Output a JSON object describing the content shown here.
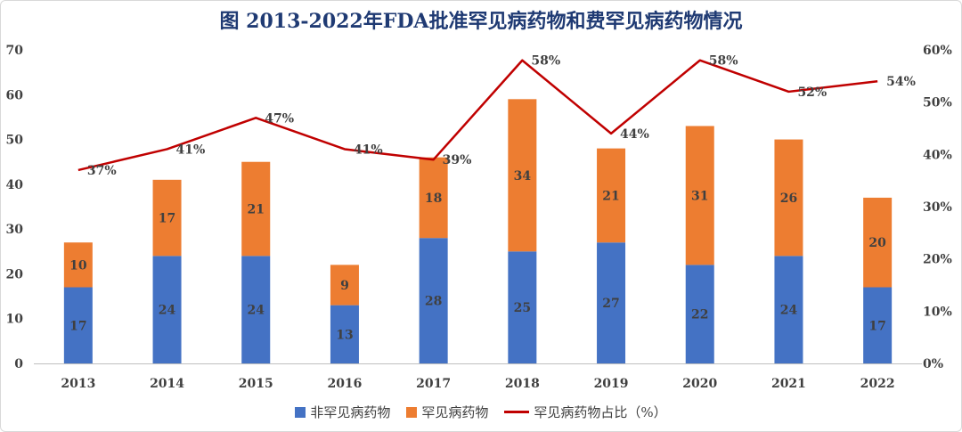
{
  "chart_data": {
    "type": "bar",
    "stacked": true,
    "title": "图  2013-2022年FDA批准罕见病药物和费罕见病药物情况",
    "categories": [
      "2013",
      "2014",
      "2015",
      "2016",
      "2017",
      "2018",
      "2019",
      "2020",
      "2021",
      "2022"
    ],
    "series": [
      {
        "name": "非罕见病药物",
        "type": "bar",
        "color": "#4472c4",
        "values": [
          17,
          24,
          24,
          13,
          28,
          25,
          27,
          22,
          24,
          17
        ]
      },
      {
        "name": "罕见病药物",
        "type": "bar",
        "color": "#ed7d31",
        "values": [
          10,
          17,
          21,
          9,
          18,
          34,
          21,
          31,
          26,
          20
        ]
      },
      {
        "name": "罕见病药物占比（%）",
        "type": "line",
        "axis": "right",
        "color": "#c00000",
        "values": [
          37,
          41,
          47,
          41,
          39,
          58,
          44,
          58,
          52,
          54
        ],
        "labels": [
          "37%",
          "41%",
          "47%",
          "41%",
          "39%",
          "58%",
          "44%",
          "58%",
          "52%",
          "54%"
        ]
      }
    ],
    "y_left": {
      "ylim": [
        0,
        70
      ],
      "ticks": [
        "0",
        "10",
        "20",
        "30",
        "40",
        "50",
        "60",
        "70"
      ]
    },
    "y_right": {
      "ylim": [
        0,
        60
      ],
      "ticks": [
        "0%",
        "10%",
        "20%",
        "30%",
        "40%",
        "50%",
        "60%"
      ]
    },
    "legend": "bottom",
    "grid": false
  }
}
